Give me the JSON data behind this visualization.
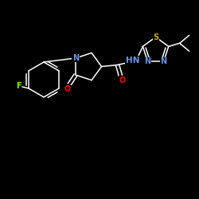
{
  "background_color": "#000000",
  "bond_color": "#ffffff",
  "atom_colors": {
    "F": "#7cfc00",
    "N": "#6495ed",
    "O": "#ff0000",
    "S": "#daa520",
    "C": "#ffffff",
    "H": "#ffffff"
  },
  "font_size": 7,
  "fig_size": [
    2.5,
    2.5
  ],
  "dpi": 100
}
